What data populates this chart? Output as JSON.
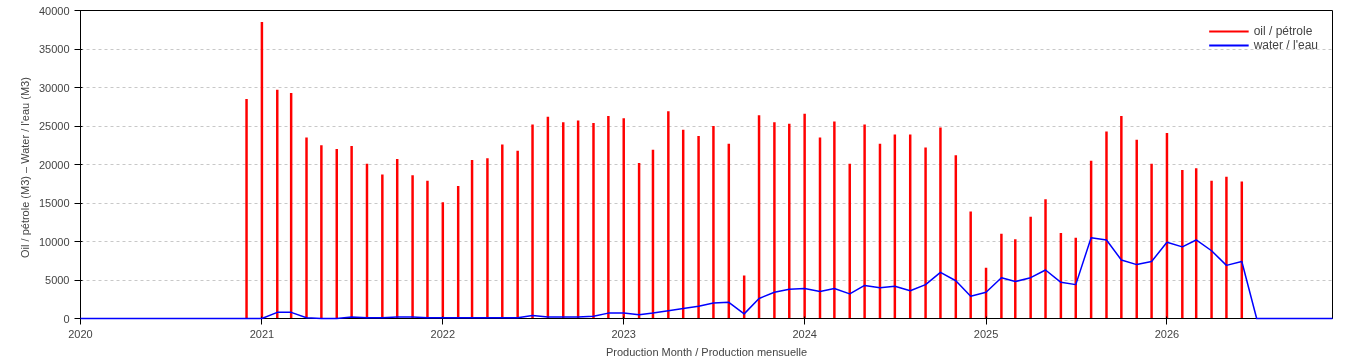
{
  "chart_data": {
    "type": "bar",
    "xlabel": "Production Month / Production mensuelle",
    "ylabel": "Oil / pétrole (M3)  –  Water / l'eau (M3)",
    "x": [
      "2020-01",
      "2020-02",
      "2020-03",
      "2020-04",
      "2020-05",
      "2020-06",
      "2020-07",
      "2020-08",
      "2020-09",
      "2020-10",
      "2020-11",
      "2020-12",
      "2021-01",
      "2021-02",
      "2021-03",
      "2021-04",
      "2021-05",
      "2021-06",
      "2021-07",
      "2021-08",
      "2021-09",
      "2021-10",
      "2021-11",
      "2021-12",
      "2022-01",
      "2022-02",
      "2022-03",
      "2022-04",
      "2022-05",
      "2022-06",
      "2022-07",
      "2022-08",
      "2022-09",
      "2022-10",
      "2022-11",
      "2022-12",
      "2023-01",
      "2023-02",
      "2023-03",
      "2023-04",
      "2023-05",
      "2023-06",
      "2023-07",
      "2023-08",
      "2023-09",
      "2023-10",
      "2023-11",
      "2023-12",
      "2024-01",
      "2024-02",
      "2024-03",
      "2024-04",
      "2024-05",
      "2024-06",
      "2024-07",
      "2024-08",
      "2024-09",
      "2024-10",
      "2024-11",
      "2024-12",
      "2025-01",
      "2025-02",
      "2025-03",
      "2025-04",
      "2025-05",
      "2025-06",
      "2025-07",
      "2025-08",
      "2025-09",
      "2025-10",
      "2025-11",
      "2025-12",
      "2026-01",
      "2026-02",
      "2026-03",
      "2026-04",
      "2026-05",
      "2026-06",
      "2026-07",
      "2026-08",
      "2026-09",
      "2026-10",
      "2026-11",
      "2026-12"
    ],
    "series": [
      {
        "name": "oil / pétrole",
        "color": "#ff0000",
        "values": [
          null,
          null,
          null,
          null,
          null,
          null,
          null,
          null,
          null,
          null,
          null,
          28500,
          38500,
          29700,
          29300,
          23500,
          22500,
          22000,
          22400,
          20100,
          18700,
          20700,
          18600,
          17900,
          15100,
          17200,
          20600,
          20800,
          22600,
          21800,
          25200,
          26200,
          25500,
          25700,
          25400,
          26300,
          26000,
          20200,
          21900,
          26900,
          24500,
          23700,
          25000,
          22700,
          5600,
          26400,
          25500,
          25300,
          26600,
          23500,
          25600,
          20100,
          25200,
          22700,
          23900,
          23900,
          22200,
          24800,
          21200,
          13900,
          6600,
          11000,
          10300,
          13200,
          15500,
          11100,
          10500,
          20500,
          24300,
          26300,
          23200,
          20100,
          24100,
          19300,
          19500,
          17900,
          18400,
          17800,
          null,
          null,
          null,
          null,
          null,
          null
        ]
      },
      {
        "name": "water / l'eau",
        "type": "line",
        "color": "#0000ff",
        "values": [
          0,
          0,
          0,
          0,
          0,
          0,
          0,
          0,
          0,
          0,
          0,
          0,
          0,
          800,
          800,
          100,
          0,
          0,
          200,
          100,
          100,
          200,
          200,
          100,
          100,
          100,
          100,
          100,
          100,
          100,
          400,
          200,
          200,
          200,
          300,
          700,
          700,
          500,
          700,
          1000,
          1300,
          1600,
          2000,
          2100,
          600,
          2600,
          3400,
          3800,
          3900,
          3500,
          3900,
          3200,
          4300,
          4000,
          4200,
          3600,
          4400,
          6000,
          4900,
          2900,
          3400,
          5300,
          4800,
          5300,
          6300,
          4700,
          4400,
          10500,
          10200,
          7600,
          7000,
          7400,
          9900,
          9300,
          10200,
          8800,
          6900,
          7400,
          0,
          0,
          0,
          0,
          0,
          0
        ]
      }
    ],
    "xlim": [
      "2020-01",
      "2026-12"
    ],
    "xticks": [
      "2020",
      "2021",
      "2022",
      "2023",
      "2024",
      "2025",
      "2026"
    ],
    "ylim": [
      0,
      40000
    ],
    "yticks": [
      0,
      5000,
      10000,
      15000,
      20000,
      25000,
      30000,
      35000,
      40000
    ],
    "grid": "y",
    "legend": "top right"
  }
}
